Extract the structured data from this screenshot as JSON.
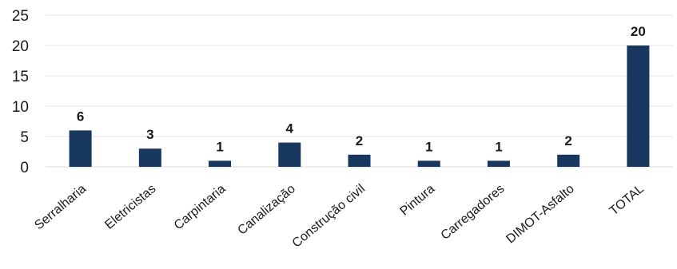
{
  "chart_data": {
    "type": "bar",
    "title": "",
    "xlabel": "",
    "ylabel": "",
    "categories": [
      "Serralharia",
      "Eletricistas",
      "Carpintaria",
      "Canalização",
      "Construção civil",
      "Pintura",
      "Carregadores",
      "DIMOT-Asfalto",
      "TOTAL"
    ],
    "values": [
      6,
      3,
      1,
      4,
      2,
      1,
      1,
      2,
      20
    ],
    "yticks": [
      0,
      5,
      10,
      15,
      20,
      25
    ],
    "ylim": [
      0,
      25
    ],
    "grid": true,
    "legend": false,
    "data_labels": true,
    "bar_color": "#17375e"
  }
}
